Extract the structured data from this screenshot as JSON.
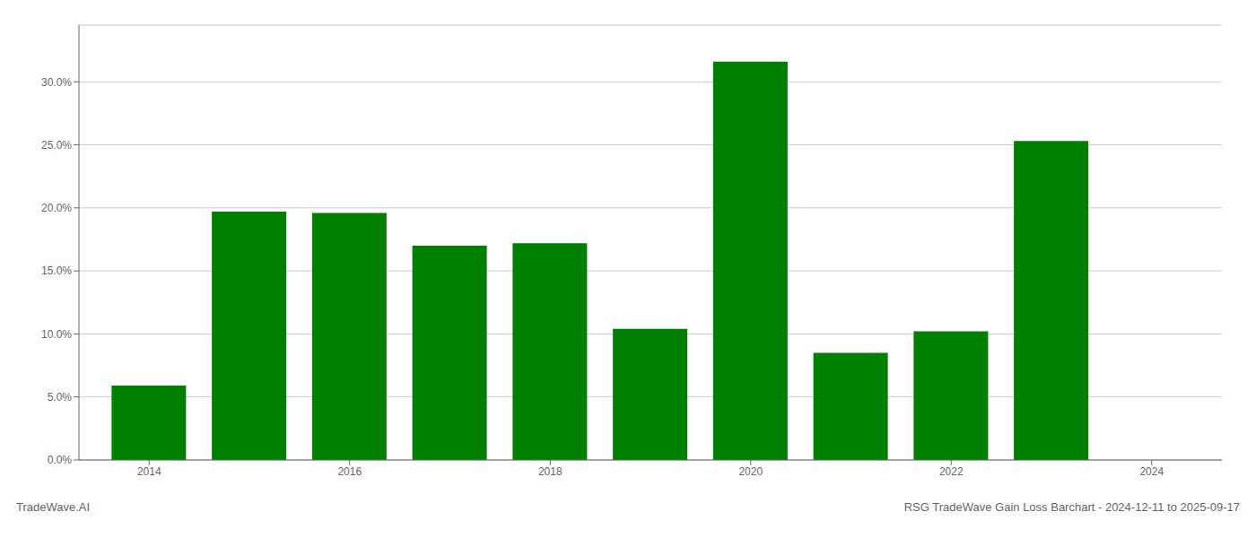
{
  "chart_data": {
    "type": "bar",
    "title": "RSG TradeWave Gain Loss Barchart - 2024-12-11 to 2025-09-17",
    "annotations": [
      "TradeWave.AI"
    ],
    "x": [
      2014,
      2015,
      2016,
      2017,
      2018,
      2019,
      2020,
      2021,
      2022,
      2023
    ],
    "values": [
      0.059,
      0.197,
      0.196,
      0.17,
      0.172,
      0.104,
      0.316,
      0.085,
      0.102,
      0.253
    ],
    "color": "#008000",
    "xlim": [
      2013.3,
      2024.7
    ],
    "xticks": [
      2014,
      2016,
      2018,
      2020,
      2022,
      2024
    ],
    "ylim": [
      0,
      0.345
    ],
    "yticks": [
      {
        "value": 0.0,
        "label": "0.0%"
      },
      {
        "value": 0.05,
        "label": "5.0%"
      },
      {
        "value": 0.1,
        "label": "10.0%"
      },
      {
        "value": 0.15,
        "label": "15.0%"
      },
      {
        "value": 0.2,
        "label": "20.0%"
      },
      {
        "value": 0.25,
        "label": "25.0%"
      },
      {
        "value": 0.3,
        "label": "30.0%"
      }
    ],
    "grid": true
  }
}
